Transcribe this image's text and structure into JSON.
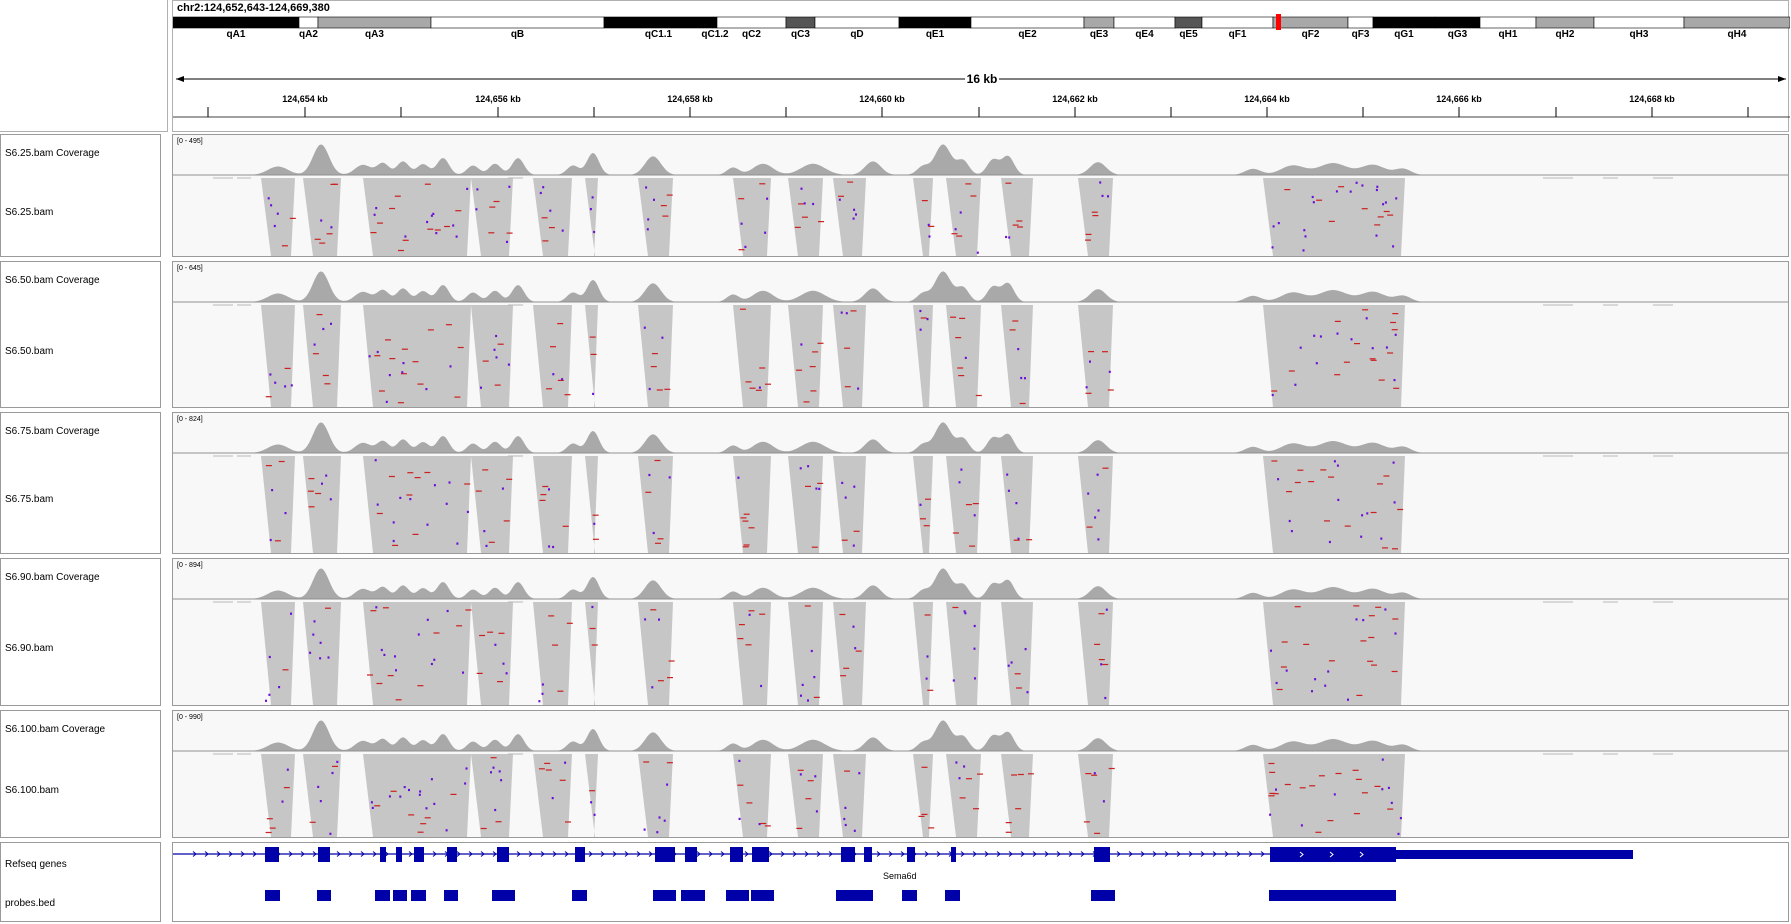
{
  "locus": "chr2:124,652,643-124,669,380",
  "ideogram": {
    "bands": [
      {
        "name": "qA1",
        "stain": "black"
      },
      {
        "name": "qA2",
        "stain": "white"
      },
      {
        "name": "qA3",
        "stain": "gray"
      },
      {
        "name": "qB",
        "stain": "white"
      },
      {
        "name": "qC1.1",
        "stain": "black"
      },
      {
        "name": "qC1.2",
        "stain": "black"
      },
      {
        "name": "qC2",
        "stain": "white"
      },
      {
        "name": "qC3",
        "stain": "darkgray"
      },
      {
        "name": "qD",
        "stain": "white"
      },
      {
        "name": "qE1",
        "stain": "black"
      },
      {
        "name": "qE2",
        "stain": "white"
      },
      {
        "name": "qE3",
        "stain": "gray"
      },
      {
        "name": "qE4",
        "stain": "white"
      },
      {
        "name": "qE5",
        "stain": "darkgray"
      },
      {
        "name": "qF1",
        "stain": "white"
      },
      {
        "name": "qF2",
        "stain": "gray"
      },
      {
        "name": "qF3",
        "stain": "white"
      },
      {
        "name": "qG1",
        "stain": "black"
      },
      {
        "name": "qG3",
        "stain": "black"
      },
      {
        "name": "qH1",
        "stain": "white"
      },
      {
        "name": "qH2",
        "stain": "gray"
      },
      {
        "name": "qH3",
        "stain": "white"
      },
      {
        "name": "qH4",
        "stain": "gray"
      }
    ]
  },
  "ruler": {
    "span": "16 kb",
    "ticks": [
      "124,654 kb",
      "124,656 kb",
      "124,658 kb",
      "124,660 kb",
      "124,662 kb",
      "124,664 kb",
      "124,666 kb",
      "124,668 kb"
    ]
  },
  "tracks": [
    {
      "coverage_label": "S6.25.bam Coverage",
      "bam_label": "S6.25.bam",
      "range": "[0 - 495]"
    },
    {
      "coverage_label": "S6.50.bam Coverage",
      "bam_label": "S6.50.bam",
      "range": "[0 - 645]"
    },
    {
      "coverage_label": "S6.75.bam Coverage",
      "bam_label": "S6.75.bam",
      "range": "[0 - 824]"
    },
    {
      "coverage_label": "S6.90.bam Coverage",
      "bam_label": "S6.90.bam",
      "range": "[0 - 894]"
    },
    {
      "coverage_label": "S6.100.bam Coverage",
      "bam_label": "S6.100.bam",
      "range": "[0 - 990]"
    }
  ],
  "annotation": {
    "refseq_label": "Refseq genes",
    "probes_label": "probes.bed",
    "gene_name": "Sema6d"
  },
  "colors": {
    "coverage": "#a9a9a9",
    "read": "#c6c6c6",
    "gene": "#0000a8",
    "mismatch_red": "#cc2020",
    "insertion_purple": "#6a0dd8",
    "cytoband_marker": "#ff0000"
  }
}
